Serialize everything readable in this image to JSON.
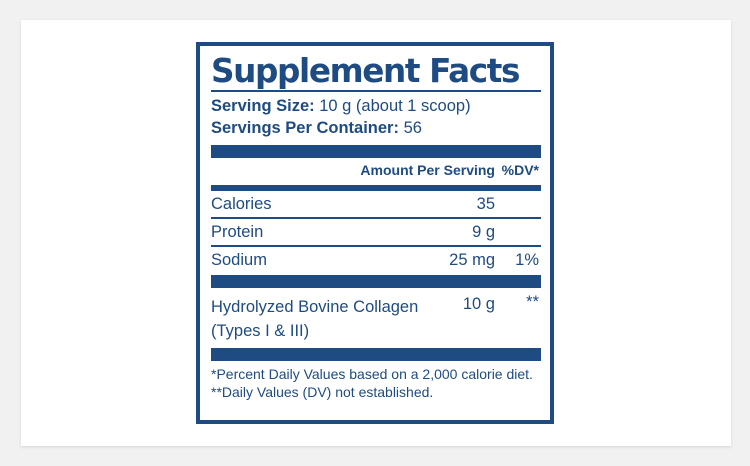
{
  "label": {
    "title": "Supplement Facts",
    "serving_size_label": "Serving Size:",
    "serving_size_value": "10 g (about 1 scoop)",
    "servings_per_container_label": "Servings Per Container:",
    "servings_per_container_value": "56",
    "column_amount": "Amount Per Serving",
    "column_dv": "%DV*",
    "nutrients": [
      {
        "name": "Calories",
        "amount": "35",
        "dv": ""
      },
      {
        "name": "Protein",
        "amount": "9 g",
        "dv": ""
      },
      {
        "name": "Sodium",
        "amount": "25 mg",
        "dv": "1%"
      }
    ],
    "ingredient": {
      "name_line1": "Hydrolyzed Bovine Collagen",
      "name_line2": "(Types I & III)",
      "amount": "10 g",
      "dv": "**"
    },
    "footnote_1": "*Percent Daily Values based on a 2,000 calorie diet.",
    "footnote_2": "**Daily Values (DV) not established."
  },
  "colors": {
    "label_blue": "#1e4b82",
    "page_background": "#f1f1f1",
    "card_background": "#ffffff"
  }
}
